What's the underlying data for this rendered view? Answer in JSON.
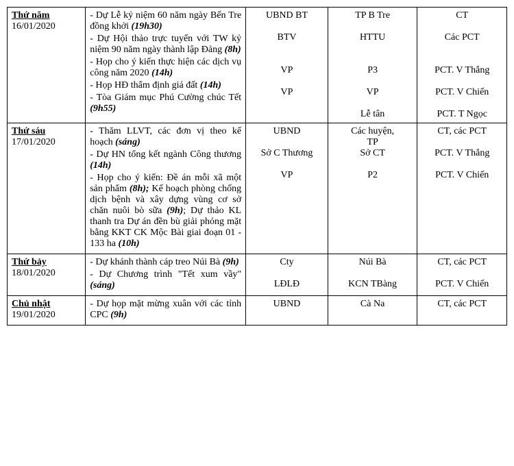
{
  "rows": [
    {
      "day_name": "Thứ năm",
      "day_date": "16/01/2020",
      "entries": [
        {
          "prefix": "- Dự Lễ kỷ niệm 60 năm ngày Bến Tre đồng khởi ",
          "time": "(19h30)",
          "org": "UBND BT",
          "place": "TP B Tre",
          "person": "CT"
        },
        {
          "prefix": "- Dự Hội thảo trực tuyến với TW kỷ niệm 90 năm ngày thành lập Đảng ",
          "time": "(8h)",
          "org": "BTV",
          "place": "HTTU",
          "person": "Các PCT"
        },
        {
          "prefix": "- Họp cho ý kiến thực hiện các dịch vụ công năm 2020 ",
          "time": "(14h)",
          "org": "VP",
          "place": "P3",
          "person": "PCT. V Thắng"
        },
        {
          "prefix": "- Họp HĐ thẩm định giá đất ",
          "time": "(14h)",
          "org": "VP",
          "place": "VP",
          "person": "PCT. V Chiến"
        },
        {
          "prefix": "- Tòa Giám mục Phú Cường chúc Tết ",
          "time": "(9h55)",
          "org": "",
          "place": "Lễ tân",
          "person": "PCT. T Ngọc"
        }
      ],
      "org_html": "UBND BT<br><br>BTV<br><br><br>VP<br><br>VP",
      "place_html": "TP B Tre<br><br>HTTU<br><br><br>P3<br><br>VP<br><br>Lễ tân",
      "person_html": "CT<br><br>Các PCT<br><br><br>PCT. V Thắng<br><br>PCT. V Chiến<br><br>PCT. T Ngọc"
    },
    {
      "day_name": "Thứ sáu",
      "day_date": "17/01/2020",
      "entries": [
        {
          "prefix": "- Thăm LLVT, các đơn vị theo kế hoạch ",
          "time": "(sáng)",
          "org": "UBND",
          "place": "Các huyện, TP",
          "person": "CT, các PCT"
        },
        {
          "prefix": "- Dự HN tổng kết ngành Công thương ",
          "time": "(14h)",
          "org": "Sở C Thương",
          "place": "Sở CT",
          "person": "PCT. V Thắng"
        },
        {
          "segments": [
            {
              "text": "- Họp cho ý kiến: Đề án mỗi xã một sản phẩm "
            },
            {
              "text": "(8h);",
              "time": true
            },
            {
              "text": " Kế hoạch phòng chống dịch bệnh và xây dựng vùng cơ sở chăn nuôi bò sữa "
            },
            {
              "text": "(9h)",
              "time": true
            },
            {
              "text": "; Dự thảo KL thanh tra Dự án đền bù giải phóng mặt bằng KKT CK Mộc Bài giai đoạn 01 - 133 ha "
            },
            {
              "text": "(10h)",
              "time": true
            }
          ],
          "org": "VP",
          "place": "P2",
          "person": "PCT. V Chiến"
        }
      ],
      "org_html": "UBND<br><br>Sở C Thương<br><br>VP",
      "place_html": "Các huyện,<br>TP<br>Sở CT<br><br>P2",
      "person_html": "CT, các PCT<br><br>PCT. V Thắng<br><br>PCT. V Chiến"
    },
    {
      "day_name": "Thứ bảy",
      "day_date": "18/01/2020",
      "entries": [
        {
          "prefix": "- Dự khánh thành cáp treo Núi Bà ",
          "time": "(9h)",
          "org": "Cty",
          "place": "Núi Bà",
          "person": "CT, các PCT"
        },
        {
          "prefix": "- Dự Chương trình \"Tết xum vầy\" ",
          "time": "(sáng)",
          "org": "LĐLĐ",
          "place": "KCN TBàng",
          "person": "PCT. V Chiến"
        }
      ],
      "org_html": "Cty<br><br>LĐLĐ",
      "place_html": "Núi Bà<br><br>KCN TBàng",
      "person_html": "CT, các PCT<br><br>PCT. V Chiến"
    },
    {
      "day_name": "Chủ nhật",
      "day_date": "19/01/2020",
      "entries": [
        {
          "prefix": "- Dự họp mặt mừng xuân với các tỉnh CPC ",
          "time": "(9h)",
          "org": "UBND",
          "place": "Cà Na",
          "person": "CT, các PCT"
        }
      ],
      "org_html": "UBND",
      "place_html": "Cà Na",
      "person_html": "CT, các PCT"
    }
  ]
}
